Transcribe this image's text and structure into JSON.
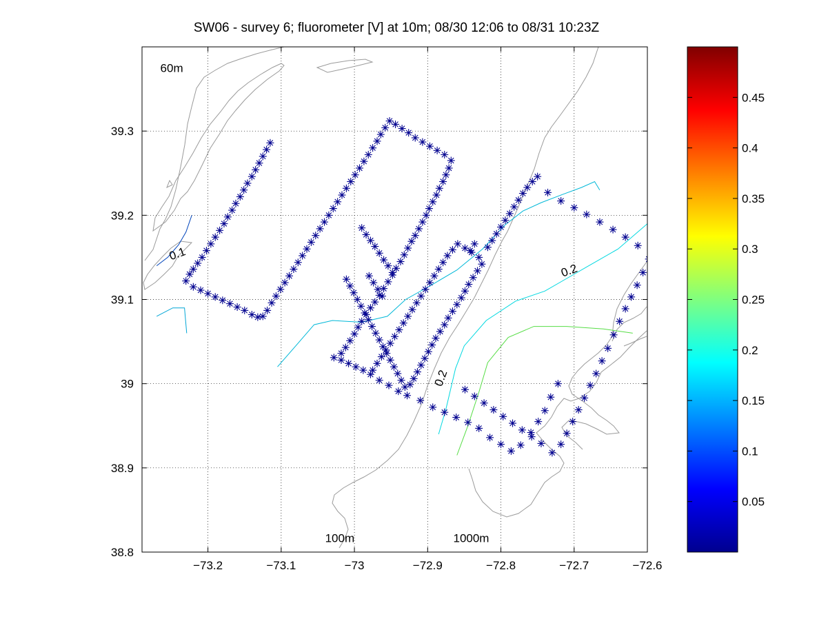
{
  "figure": {
    "title": "SW06 - survey 6; fluorometer [V] at 10m; 08/30 12:06 to 08/31 10:23Z"
  },
  "chart_data": {
    "type": "scatter",
    "title": "SW06 - survey 6; fluorometer [V] at 10m; 08/30 12:06 to 08/31 10:23Z",
    "xlabel": "",
    "ylabel": "",
    "xlim": [
      -73.29,
      -72.6
    ],
    "ylim": [
      38.8,
      39.4
    ],
    "x_ticks": [
      -73.2,
      -73.1,
      -73.0,
      -72.9,
      -72.8,
      -72.7,
      -72.6
    ],
    "x_tick_labels": [
      "−73.2",
      "−73.1",
      "−73",
      "−72.9",
      "−72.8",
      "−72.7",
      "−72.6"
    ],
    "y_ticks": [
      38.8,
      38.9,
      39.0,
      39.1,
      39.2,
      39.3
    ],
    "y_tick_labels": [
      "38.8",
      "38.9",
      "39",
      "39.1",
      "39.2",
      "39.3"
    ],
    "grid": true,
    "marker_color": "#00008f",
    "track": [
      [
        -73.115,
        39.286
      ],
      [
        -73.12,
        39.278
      ],
      [
        -73.125,
        39.27
      ],
      [
        -73.13,
        39.262
      ],
      [
        -73.135,
        39.254
      ],
      [
        -73.14,
        39.246
      ],
      [
        -73.146,
        39.238
      ],
      [
        -73.151,
        39.23
      ],
      [
        -73.156,
        39.222
      ],
      [
        -73.162,
        39.214
      ],
      [
        -73.167,
        39.206
      ],
      [
        -73.173,
        39.198
      ],
      [
        -73.178,
        39.19
      ],
      [
        -73.184,
        39.182
      ],
      [
        -73.19,
        39.174
      ],
      [
        -73.196,
        39.166
      ],
      [
        -73.202,
        39.158
      ],
      [
        -73.208,
        39.15
      ],
      [
        -73.214,
        39.143
      ],
      [
        -73.22,
        39.136
      ],
      [
        -73.225,
        39.13
      ],
      [
        -73.23,
        39.122
      ],
      [
        -73.22,
        39.115
      ],
      [
        -73.21,
        39.111
      ],
      [
        -73.2,
        39.107
      ],
      [
        -73.19,
        39.103
      ],
      [
        -73.18,
        39.099
      ],
      [
        -73.17,
        39.095
      ],
      [
        -73.16,
        39.091
      ],
      [
        -73.15,
        39.087
      ],
      [
        -73.14,
        39.082
      ],
      [
        -73.132,
        39.079
      ],
      [
        -73.125,
        39.08
      ],
      [
        -73.119,
        39.087
      ],
      [
        -73.113,
        39.096
      ],
      [
        -73.107,
        39.104
      ],
      [
        -73.101,
        39.112
      ],
      [
        -73.095,
        39.12
      ],
      [
        -73.089,
        39.128
      ],
      [
        -73.083,
        39.136
      ],
      [
        -73.077,
        39.144
      ],
      [
        -73.071,
        39.152
      ],
      [
        -73.065,
        39.16
      ],
      [
        -73.059,
        39.168
      ],
      [
        -73.053,
        39.176
      ],
      [
        -73.047,
        39.184
      ],
      [
        -73.041,
        39.192
      ],
      [
        -73.035,
        39.2
      ],
      [
        -73.029,
        39.208
      ],
      [
        -73.023,
        39.216
      ],
      [
        -73.017,
        39.224
      ],
      [
        -73.011,
        39.232
      ],
      [
        -73.005,
        39.24
      ],
      [
        -72.999,
        39.248
      ],
      [
        -72.993,
        39.256
      ],
      [
        -72.987,
        39.264
      ],
      [
        -72.981,
        39.272
      ],
      [
        -72.975,
        39.28
      ],
      [
        -72.969,
        39.288
      ],
      [
        -72.964,
        39.296
      ],
      [
        -72.958,
        39.304
      ],
      [
        -72.952,
        39.312
      ],
      [
        -72.944,
        39.308
      ],
      [
        -72.935,
        39.303
      ],
      [
        -72.926,
        39.298
      ],
      [
        -72.917,
        39.292
      ],
      [
        -72.907,
        39.287
      ],
      [
        -72.897,
        39.282
      ],
      [
        -72.887,
        39.277
      ],
      [
        -72.877,
        39.272
      ],
      [
        -72.868,
        39.265
      ],
      [
        -72.871,
        39.256
      ],
      [
        -72.875,
        39.248
      ],
      [
        -72.879,
        39.24
      ],
      [
        -72.884,
        39.232
      ],
      [
        -72.888,
        39.224
      ],
      [
        -72.893,
        39.216
      ],
      [
        -72.898,
        39.208
      ],
      [
        -72.902,
        39.2
      ],
      [
        -72.907,
        39.192
      ],
      [
        -72.912,
        39.184
      ],
      [
        -72.917,
        39.176
      ],
      [
        -72.922,
        39.169
      ],
      [
        -72.927,
        39.161
      ],
      [
        -72.932,
        39.153
      ],
      [
        -72.937,
        39.145
      ],
      [
        -72.943,
        39.137
      ],
      [
        -72.948,
        39.129
      ],
      [
        -72.954,
        39.121
      ],
      [
        -72.96,
        39.113
      ],
      [
        -72.966,
        39.105
      ],
      [
        -72.972,
        39.097
      ],
      [
        -72.978,
        39.09
      ],
      [
        -72.984,
        39.082
      ],
      [
        -72.99,
        39.074
      ],
      [
        -72.995,
        39.067
      ],
      [
        -73.0,
        39.059
      ],
      [
        -73.006,
        39.051
      ],
      [
        -73.012,
        39.043
      ],
      [
        -73.018,
        39.036
      ],
      [
        -73.028,
        39.031
      ],
      [
        -73.018,
        39.028
      ],
      [
        -73.008,
        39.024
      ],
      [
        -72.998,
        39.02
      ],
      [
        -72.988,
        39.016
      ],
      [
        -72.978,
        39.011
      ],
      [
        -72.966,
        39.004
      ],
      [
        -72.953,
        38.998
      ],
      [
        -72.94,
        38.991
      ],
      [
        -72.928,
        38.986
      ],
      [
        -72.931,
        38.996
      ],
      [
        -72.936,
        39.004
      ],
      [
        -72.941,
        39.012
      ],
      [
        -72.946,
        39.02
      ],
      [
        -72.951,
        39.028
      ],
      [
        -72.956,
        39.036
      ],
      [
        -72.961,
        39.044
      ],
      [
        -72.966,
        39.052
      ],
      [
        -72.971,
        39.06
      ],
      [
        -72.976,
        39.068
      ],
      [
        -72.981,
        39.076
      ],
      [
        -72.986,
        39.084
      ],
      [
        -72.991,
        39.092
      ],
      [
        -72.996,
        39.1
      ],
      [
        -73.001,
        39.108
      ],
      [
        -73.006,
        39.116
      ],
      [
        -73.011,
        39.124
      ],
      [
        -72.948,
        39.132
      ],
      [
        -72.954,
        39.14
      ],
      [
        -72.96,
        39.147
      ],
      [
        -72.966,
        39.155
      ],
      [
        -72.972,
        39.163
      ],
      [
        -72.978,
        39.17
      ],
      [
        -72.984,
        39.177
      ],
      [
        -72.99,
        39.185
      ],
      [
        -72.962,
        39.104
      ],
      [
        -72.968,
        39.112
      ],
      [
        -72.974,
        39.12
      ],
      [
        -72.98,
        39.128
      ],
      [
        -72.975,
        39.016
      ],
      [
        -72.969,
        39.024
      ],
      [
        -72.963,
        39.032
      ],
      [
        -72.957,
        39.04
      ],
      [
        -72.951,
        39.048
      ],
      [
        -72.945,
        39.056
      ],
      [
        -72.939,
        39.064
      ],
      [
        -72.933,
        39.072
      ],
      [
        -72.927,
        39.08
      ],
      [
        -72.921,
        39.088
      ],
      [
        -72.915,
        39.096
      ],
      [
        -72.909,
        39.104
      ],
      [
        -72.903,
        39.112
      ],
      [
        -72.897,
        39.12
      ],
      [
        -72.891,
        39.128
      ],
      [
        -72.885,
        39.136
      ],
      [
        -72.879,
        39.144
      ],
      [
        -72.873,
        39.152
      ],
      [
        -72.866,
        39.159
      ],
      [
        -72.859,
        39.166
      ],
      [
        -72.849,
        39.161
      ],
      [
        -72.84,
        39.156
      ],
      [
        -72.83,
        39.15
      ],
      [
        -72.826,
        39.142
      ],
      [
        -72.832,
        39.134
      ],
      [
        -72.838,
        39.126
      ],
      [
        -72.844,
        39.118
      ],
      [
        -72.849,
        39.11
      ],
      [
        -72.854,
        39.102
      ],
      [
        -72.86,
        39.094
      ],
      [
        -72.866,
        39.086
      ],
      [
        -72.872,
        39.078
      ],
      [
        -72.877,
        39.07
      ],
      [
        -72.883,
        39.062
      ],
      [
        -72.889,
        39.054
      ],
      [
        -72.894,
        39.046
      ],
      [
        -72.899,
        39.038
      ],
      [
        -72.904,
        39.03
      ],
      [
        -72.909,
        39.022
      ],
      [
        -72.914,
        39.014
      ],
      [
        -72.919,
        39.006
      ],
      [
        -72.924,
        38.999
      ],
      [
        -72.836,
        39.166
      ],
      [
        -72.842,
        39.158
      ],
      [
        -72.812,
        39.17
      ],
      [
        -72.818,
        39.162
      ],
      [
        -72.806,
        39.178
      ],
      [
        -72.8,
        39.186
      ],
      [
        -72.794,
        39.194
      ],
      [
        -72.788,
        39.202
      ],
      [
        -72.782,
        39.21
      ],
      [
        -72.776,
        39.218
      ],
      [
        -72.77,
        39.226
      ],
      [
        -72.764,
        39.233
      ],
      [
        -72.757,
        39.24
      ],
      [
        -72.75,
        39.246
      ],
      [
        -72.736,
        39.227
      ],
      [
        -72.718,
        39.217
      ],
      [
        -72.7,
        39.209
      ],
      [
        -72.683,
        39.201
      ],
      [
        -72.665,
        39.192
      ],
      [
        -72.647,
        39.183
      ],
      [
        -72.63,
        39.174
      ],
      [
        -72.613,
        39.164
      ],
      [
        -72.598,
        39.148
      ],
      [
        -72.606,
        39.132
      ],
      [
        -72.614,
        39.117
      ],
      [
        -72.622,
        39.103
      ],
      [
        -72.63,
        39.089
      ],
      [
        -72.638,
        39.074
      ],
      [
        -72.646,
        39.058
      ],
      [
        -72.654,
        39.042
      ],
      [
        -72.662,
        39.027
      ],
      [
        -72.67,
        39.012
      ],
      [
        -72.678,
        38.998
      ],
      [
        -72.686,
        38.983
      ],
      [
        -72.694,
        38.969
      ],
      [
        -72.702,
        38.955
      ],
      [
        -72.71,
        38.941
      ],
      [
        -72.718,
        38.928
      ],
      [
        -72.73,
        38.918
      ],
      [
        -72.745,
        38.929
      ],
      [
        -72.758,
        38.937
      ],
      [
        -72.771,
        38.945
      ],
      [
        -72.784,
        38.953
      ],
      [
        -72.797,
        38.961
      ],
      [
        -72.81,
        38.969
      ],
      [
        -72.823,
        38.977
      ],
      [
        -72.836,
        38.985
      ],
      [
        -72.849,
        38.993
      ],
      [
        -72.91,
        38.98
      ],
      [
        -72.893,
        38.972
      ],
      [
        -72.877,
        38.966
      ],
      [
        -72.861,
        38.96
      ],
      [
        -72.845,
        38.954
      ],
      [
        -72.83,
        38.947
      ],
      [
        -72.815,
        38.936
      ],
      [
        -72.8,
        38.928
      ],
      [
        -72.786,
        38.92
      ],
      [
        -72.773,
        38.927
      ],
      [
        -72.759,
        38.942
      ],
      [
        -72.749,
        38.955
      ],
      [
        -72.74,
        38.968
      ],
      [
        -72.732,
        38.984
      ],
      [
        -72.722,
        39.0
      ]
    ],
    "contours": [
      {
        "level": "0.1",
        "color": "#0044bb",
        "points": [
          [
            -73.27,
            39.14
          ],
          [
            -73.255,
            39.15
          ],
          [
            -73.24,
            39.165
          ],
          [
            -73.23,
            39.18
          ],
          [
            -73.222,
            39.2
          ]
        ]
      },
      {
        "level": "0.15",
        "color": "#00a6d6",
        "points": [
          [
            -73.27,
            39.08
          ],
          [
            -73.248,
            39.09
          ],
          [
            -73.232,
            39.09
          ],
          [
            -73.229,
            39.06
          ]
        ]
      },
      {
        "level": "0.15",
        "color": "#00b8d8",
        "points": [
          [
            -73.105,
            39.02
          ],
          [
            -73.08,
            39.045
          ],
          [
            -73.055,
            39.07
          ],
          [
            -73.03,
            39.075
          ],
          [
            -72.99,
            39.073
          ],
          [
            -72.955,
            39.08
          ],
          [
            -72.93,
            39.1
          ],
          [
            -72.895,
            39.117
          ],
          [
            -72.86,
            39.135
          ],
          [
            -72.825,
            39.16
          ],
          [
            -72.795,
            39.188
          ],
          [
            -72.77,
            39.205
          ],
          [
            -72.745,
            39.215
          ],
          [
            -72.715,
            39.225
          ],
          [
            -72.69,
            39.233
          ],
          [
            -72.672,
            39.24
          ],
          [
            -72.665,
            39.23
          ]
        ]
      },
      {
        "level": "0.2",
        "color": "#00d8e0",
        "points": [
          [
            -72.885,
            38.94
          ],
          [
            -72.875,
            38.97
          ],
          [
            -72.862,
            39.018
          ],
          [
            -72.85,
            39.045
          ],
          [
            -72.82,
            39.075
          ],
          [
            -72.78,
            39.098
          ],
          [
            -72.74,
            39.11
          ],
          [
            -72.71,
            39.125
          ],
          [
            -72.68,
            39.14
          ],
          [
            -72.64,
            39.16
          ],
          [
            -72.6,
            39.19
          ]
        ]
      },
      {
        "level": "0.25",
        "color": "#55dd44",
        "points": [
          [
            -72.86,
            38.915
          ],
          [
            -72.845,
            38.95
          ],
          [
            -72.83,
            38.99
          ],
          [
            -72.818,
            39.025
          ],
          [
            -72.79,
            39.055
          ],
          [
            -72.755,
            39.068
          ],
          [
            -72.71,
            39.068
          ],
          [
            -72.66,
            39.065
          ],
          [
            -72.62,
            39.06
          ]
        ]
      }
    ],
    "contour_labels": [
      {
        "text": "0.1",
        "x": -73.24,
        "y": 39.15
      },
      {
        "text": "0.2",
        "x": -72.705,
        "y": 39.13
      },
      {
        "text": "0.2",
        "x": -72.877,
        "y": 39.005
      }
    ],
    "bathymetry_labels": [
      {
        "text": "60m",
        "x": -73.265,
        "y": 39.37
      },
      {
        "text": "100m",
        "x": -73.04,
        "y": 38.812
      },
      {
        "text": "1000m",
        "x": -72.865,
        "y": 38.812
      }
    ],
    "colorbar": {
      "colormap": "jet",
      "range": [
        0.0,
        0.5
      ],
      "ticks": [
        0.05,
        0.1,
        0.15,
        0.2,
        0.25,
        0.3,
        0.35,
        0.4,
        0.45
      ],
      "tick_labels": [
        "0.05",
        "0.1",
        "0.15",
        "0.2",
        "0.25",
        "0.3",
        "0.35",
        "0.4",
        "0.45"
      ]
    }
  }
}
